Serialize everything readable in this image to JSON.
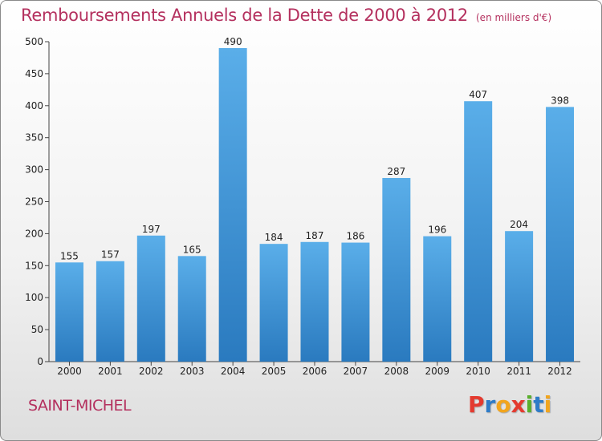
{
  "header": {
    "title": "Remboursements Annuels de la Dette de 2000 à 2012",
    "unit": "(en milliers d'€)"
  },
  "footer": {
    "commune": "SAINT-MICHEL",
    "brand": [
      "P",
      "r",
      "o",
      "x",
      "i",
      "t",
      "i"
    ],
    "brand_colors": [
      "#e43a2f",
      "#2e7cc8",
      "#f2a51d",
      "#e43a2f",
      "#58b02c",
      "#2e7cc8",
      "#f2a51d"
    ]
  },
  "colors": {
    "title": "#b4305e",
    "bar_top": "#5aaee9",
    "bar_bottom": "#2a7abf"
  },
  "chart_data": {
    "type": "bar",
    "title": "Remboursements Annuels de la Dette de 2000 à 2012",
    "xlabel": "",
    "ylabel": "",
    "categories": [
      "2000",
      "2001",
      "2002",
      "2003",
      "2004",
      "2005",
      "2006",
      "2007",
      "2008",
      "2009",
      "2010",
      "2011",
      "2012"
    ],
    "values": [
      155,
      157,
      197,
      165,
      490,
      184,
      187,
      186,
      287,
      196,
      407,
      204,
      398
    ],
    "ylim": [
      0,
      500
    ],
    "yticks": [
      0,
      50,
      100,
      150,
      200,
      250,
      300,
      350,
      400,
      450,
      500
    ],
    "grid": false,
    "legend": "none"
  }
}
